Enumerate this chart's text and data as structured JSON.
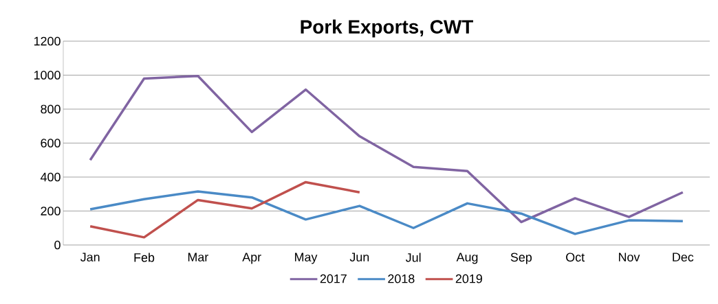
{
  "chart_data": {
    "type": "line",
    "title": "Pork Exports, CWT",
    "categories": [
      "Jan",
      "Feb",
      "Mar",
      "Apr",
      "May",
      "Jun",
      "Jul",
      "Aug",
      "Sep",
      "Oct",
      "Nov",
      "Dec"
    ],
    "series": [
      {
        "name": "2017",
        "color": "#8064a2",
        "values": [
          500,
          980,
          995,
          665,
          915,
          640,
          460,
          435,
          135,
          275,
          165,
          310
        ]
      },
      {
        "name": "2018",
        "color": "#4a8ac6",
        "values": [
          210,
          270,
          315,
          280,
          150,
          230,
          100,
          245,
          185,
          65,
          145,
          140
        ]
      },
      {
        "name": "2019",
        "color": "#c0504d",
        "values": [
          110,
          45,
          265,
          215,
          370,
          310,
          null,
          null,
          null,
          null,
          null,
          null
        ]
      }
    ],
    "ylim": [
      0,
      1200
    ],
    "yticks": [
      0,
      200,
      400,
      600,
      800,
      1000,
      1200
    ],
    "grid": "y",
    "legend": "bottom",
    "marker": "none",
    "line_style": "solid"
  }
}
